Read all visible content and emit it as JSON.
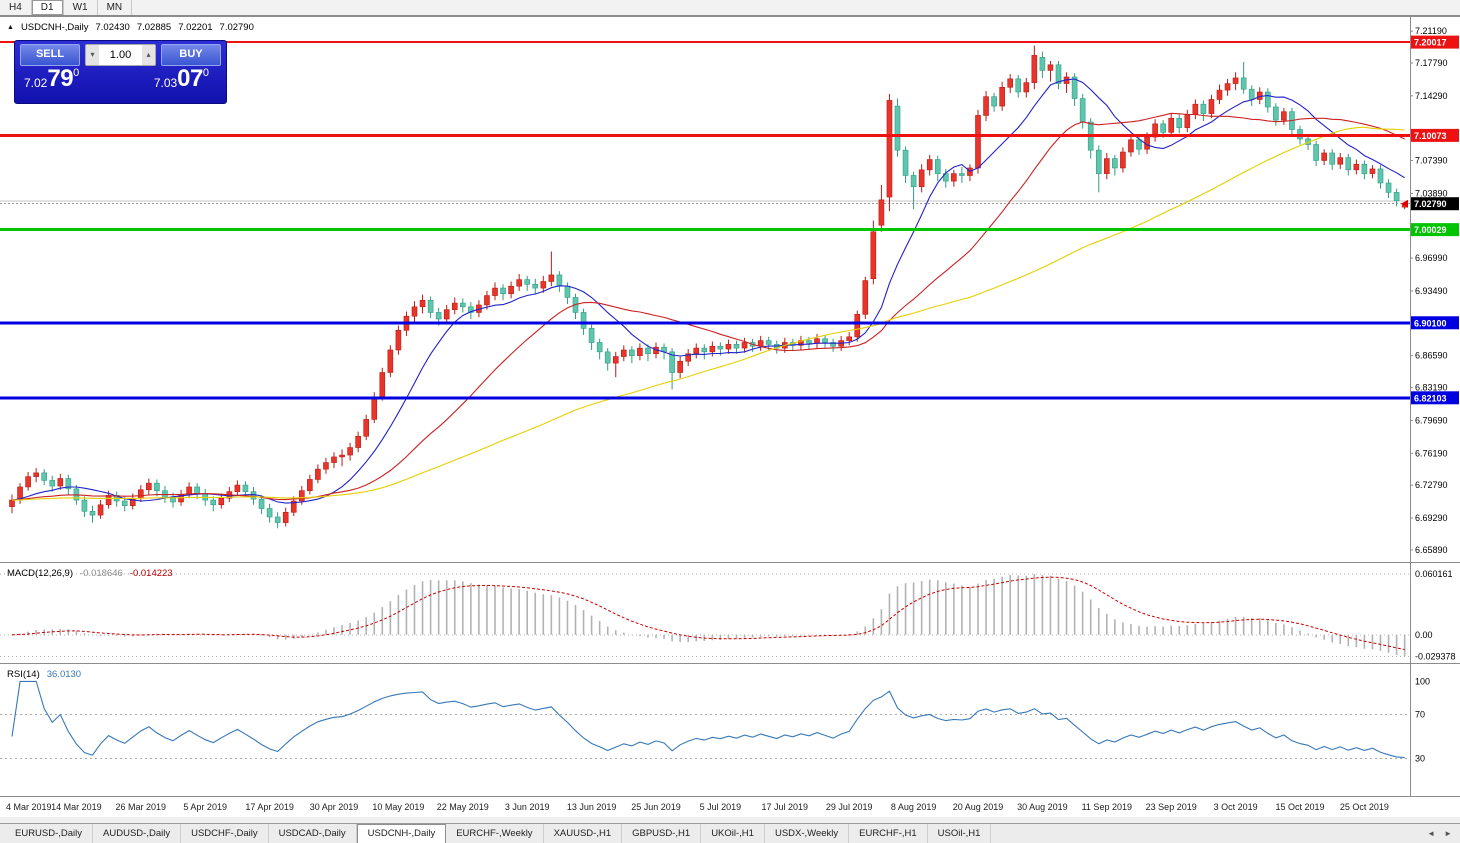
{
  "toolbar": {
    "timeframes": [
      "H4",
      "D1",
      "W1",
      "MN"
    ],
    "active": "D1"
  },
  "chart_header": {
    "collapse_icon": "▲",
    "symbol": "USDCNH-,Daily",
    "open": "7.02430",
    "high": "7.02885",
    "low": "7.02201",
    "close": "7.02790"
  },
  "trade_widget": {
    "sell_label": "SELL",
    "buy_label": "BUY",
    "lot_value": "1.00",
    "spinner_down_icon": "▾",
    "spinner_up_icon": "▴",
    "sell_price_small": "7.02",
    "sell_price_big": "79",
    "sell_price_sup": "0",
    "buy_price_small": "7.03",
    "buy_price_big": "07",
    "buy_price_sup": "0"
  },
  "colors": {
    "up": "#e8342a",
    "up_border": "#b91c14",
    "down": "#5fc6ae",
    "down_border": "#2f9c84",
    "macd_hist": "#b2b2b2",
    "macd_signal": "#cc0000",
    "rsi": "#3878b8"
  },
  "chart_data": {
    "main": {
      "type": "candlestick",
      "symbol": "USDCNH-,Daily",
      "ohlc_display": {
        "open": "7.02430",
        "high": "7.02885",
        "low": "7.02201",
        "close": "7.02790"
      },
      "y_range": [
        6.646,
        7.228
      ],
      "y_axis_ticks": [
        7.2119,
        7.1779,
        7.1429,
        7.0739,
        7.0389,
        6.9699,
        6.9349,
        6.8659,
        6.8319,
        6.7969,
        6.7619,
        6.7279,
        6.6929,
        6.6589
      ],
      "levels": [
        {
          "value": 7.20017,
          "label": "7.20017",
          "color": "#ee1111",
          "width": 2
        },
        {
          "value": 7.10073,
          "label": "7.10073",
          "color": "#ee1111",
          "width": 3
        },
        {
          "value": 7.00029,
          "label": "7.00029",
          "color": "#00c400",
          "width": 3
        },
        {
          "value": 6.901,
          "label": "6.90100",
          "color": "#0000e0",
          "width": 3
        },
        {
          "value": 6.82103,
          "label": "6.82103",
          "color": "#0000e0",
          "width": 3
        }
      ],
      "current_price": {
        "value": 7.0279,
        "label": "7.02790"
      },
      "ask_price": 7.0307,
      "moving_averages": [
        {
          "period": 10,
          "color": "#2222cc"
        },
        {
          "period": 25,
          "color": "#cc2222"
        },
        {
          "period": 60,
          "color": "#e6cf00"
        }
      ],
      "x_label_step": 8,
      "x_labels": [
        "4 Mar 2019",
        "14 Mar 2019",
        "26 Mar 2019",
        "5 Apr 2019",
        "17 Apr 2019",
        "30 Apr 2019",
        "10 May 2019",
        "22 May 2019",
        "3 Jun 2019",
        "13 Jun 2019",
        "25 Jun 2019",
        "5 Jul 2019",
        "17 Jul 2019",
        "29 Jul 2019",
        "8 Aug 2019",
        "20 Aug 2019",
        "30 Aug 2019",
        "11 Sep 2019",
        "23 Sep 2019",
        "3 Oct 2019",
        "15 Oct 2019",
        "25 Oct 2019"
      ],
      "candles": [
        [
          6.705,
          6.718,
          6.698,
          6.712
        ],
        [
          6.712,
          6.73,
          6.708,
          6.726
        ],
        [
          6.726,
          6.742,
          6.722,
          6.737
        ],
        [
          6.737,
          6.746,
          6.731,
          6.741
        ],
        [
          6.741,
          6.745,
          6.728,
          6.733
        ],
        [
          6.733,
          6.738,
          6.721,
          6.727
        ],
        [
          6.727,
          6.74,
          6.723,
          6.735
        ],
        [
          6.735,
          6.739,
          6.718,
          6.724
        ],
        [
          6.724,
          6.728,
          6.707,
          6.712
        ],
        [
          6.712,
          6.716,
          6.694,
          6.7
        ],
        [
          6.7,
          6.706,
          6.688,
          6.696
        ],
        [
          6.696,
          6.712,
          6.692,
          6.707
        ],
        [
          6.707,
          6.722,
          6.703,
          6.717
        ],
        [
          6.717,
          6.721,
          6.705,
          6.711
        ],
        [
          6.711,
          6.716,
          6.7,
          6.706
        ],
        [
          6.706,
          6.719,
          6.702,
          6.714
        ],
        [
          6.714,
          6.728,
          6.71,
          6.723
        ],
        [
          6.723,
          6.735,
          6.718,
          6.73
        ],
        [
          6.73,
          6.734,
          6.716,
          6.722
        ],
        [
          6.722,
          6.727,
          6.709,
          6.715
        ],
        [
          6.715,
          6.72,
          6.704,
          6.71
        ],
        [
          6.71,
          6.723,
          6.706,
          6.718
        ],
        [
          6.718,
          6.731,
          6.714,
          6.726
        ],
        [
          6.726,
          6.73,
          6.713,
          6.719
        ],
        [
          6.719,
          6.724,
          6.706,
          6.712
        ],
        [
          6.712,
          6.716,
          6.7,
          6.707
        ],
        [
          6.707,
          6.719,
          6.703,
          6.714
        ],
        [
          6.714,
          6.726,
          6.71,
          6.721
        ],
        [
          6.721,
          6.733,
          6.717,
          6.728
        ],
        [
          6.728,
          6.732,
          6.715,
          6.721
        ],
        [
          6.721,
          6.726,
          6.707,
          6.713
        ],
        [
          6.713,
          6.717,
          6.697,
          6.703
        ],
        [
          6.703,
          6.708,
          6.688,
          6.694
        ],
        [
          6.694,
          6.699,
          6.682,
          6.688
        ],
        [
          6.688,
          6.704,
          6.684,
          6.699
        ],
        [
          6.699,
          6.716,
          6.695,
          6.711
        ],
        [
          6.711,
          6.727,
          6.707,
          6.722
        ],
        [
          6.722,
          6.739,
          6.718,
          6.734
        ],
        [
          6.734,
          6.75,
          6.73,
          6.745
        ],
        [
          6.745,
          6.757,
          6.74,
          6.752
        ],
        [
          6.752,
          6.763,
          6.746,
          6.758
        ],
        [
          6.758,
          6.766,
          6.748,
          6.76
        ],
        [
          6.76,
          6.773,
          6.754,
          6.768
        ],
        [
          6.768,
          6.785,
          6.763,
          6.78
        ],
        [
          6.78,
          6.803,
          6.776,
          6.798
        ],
        [
          6.798,
          6.827,
          6.794,
          6.822
        ],
        [
          6.822,
          6.853,
          6.818,
          6.848
        ],
        [
          6.848,
          6.877,
          6.843,
          6.872
        ],
        [
          6.872,
          6.898,
          6.867,
          6.893
        ],
        [
          6.893,
          6.913,
          6.887,
          6.908
        ],
        [
          6.908,
          6.924,
          6.902,
          6.918
        ],
        [
          6.918,
          6.931,
          6.911,
          6.925
        ],
        [
          6.925,
          6.929,
          6.906,
          6.912
        ],
        [
          6.912,
          6.917,
          6.898,
          6.905
        ],
        [
          6.905,
          6.92,
          6.9,
          6.915
        ],
        [
          6.915,
          6.928,
          6.91,
          6.922
        ],
        [
          6.922,
          6.927,
          6.912,
          6.918
        ],
        [
          6.918,
          6.923,
          6.905,
          6.912
        ],
        [
          6.912,
          6.925,
          6.907,
          6.92
        ],
        [
          6.92,
          6.935,
          6.915,
          6.93
        ],
        [
          6.93,
          6.944,
          6.925,
          6.938
        ],
        [
          6.938,
          6.942,
          6.925,
          6.932
        ],
        [
          6.932,
          6.945,
          6.927,
          6.94
        ],
        [
          6.94,
          6.953,
          6.935,
          6.947
        ],
        [
          6.947,
          6.951,
          6.935,
          6.942
        ],
        [
          6.942,
          6.948,
          6.931,
          6.938
        ],
        [
          6.938,
          6.951,
          6.933,
          6.945
        ],
        [
          6.945,
          6.977,
          6.94,
          6.952
        ],
        [
          6.952,
          6.956,
          6.934,
          6.94
        ],
        [
          6.94,
          6.944,
          6.921,
          6.928
        ],
        [
          6.928,
          6.932,
          6.905,
          6.912
        ],
        [
          6.912,
          6.916,
          6.888,
          6.895
        ],
        [
          6.895,
          6.899,
          6.872,
          6.88
        ],
        [
          6.88,
          6.884,
          6.862,
          6.87
        ],
        [
          6.87,
          6.874,
          6.85,
          6.858
        ],
        [
          6.858,
          6.87,
          6.843,
          6.865
        ],
        [
          6.865,
          6.877,
          6.86,
          6.872
        ],
        [
          6.872,
          6.876,
          6.858,
          6.866
        ],
        [
          6.866,
          6.879,
          6.861,
          6.874
        ],
        [
          6.874,
          6.878,
          6.86,
          6.868
        ],
        [
          6.868,
          6.88,
          6.863,
          6.875
        ],
        [
          6.875,
          6.879,
          6.862,
          6.87
        ],
        [
          6.87,
          6.874,
          6.83,
          6.848
        ],
        [
          6.848,
          6.865,
          6.842,
          6.86
        ],
        [
          6.86,
          6.873,
          6.855,
          6.868
        ],
        [
          6.868,
          6.879,
          6.863,
          6.874
        ],
        [
          6.874,
          6.878,
          6.862,
          6.87
        ],
        [
          6.87,
          6.881,
          6.865,
          6.876
        ],
        [
          6.876,
          6.88,
          6.866,
          6.873
        ],
        [
          6.873,
          6.883,
          6.868,
          6.878
        ],
        [
          6.878,
          6.882,
          6.868,
          6.874
        ],
        [
          6.874,
          6.885,
          6.869,
          6.88
        ],
        [
          6.88,
          6.884,
          6.87,
          6.876
        ],
        [
          6.876,
          6.887,
          6.871,
          6.882
        ],
        [
          6.882,
          6.886,
          6.872,
          6.878
        ],
        [
          6.878,
          6.882,
          6.868,
          6.874
        ],
        [
          6.874,
          6.885,
          6.869,
          6.88
        ],
        [
          6.88,
          6.884,
          6.871,
          6.877
        ],
        [
          6.877,
          6.887,
          6.872,
          6.882
        ],
        [
          6.882,
          6.886,
          6.873,
          6.879
        ],
        [
          6.879,
          6.889,
          6.874,
          6.884
        ],
        [
          6.884,
          6.888,
          6.874,
          6.88
        ],
        [
          6.88,
          6.884,
          6.87,
          6.876
        ],
        [
          6.876,
          6.887,
          6.871,
          6.882
        ],
        [
          6.882,
          6.891,
          6.877,
          6.886
        ],
        [
          6.886,
          6.914,
          6.881,
          6.91
        ],
        [
          6.91,
          6.95,
          6.905,
          6.946
        ],
        [
          6.948,
          7.01,
          6.942,
          6.998
        ],
        [
          7.005,
          7.048,
          6.998,
          7.032
        ],
        [
          7.035,
          7.145,
          7.02,
          7.138
        ],
        [
          7.132,
          7.14,
          7.078,
          7.085
        ],
        [
          7.085,
          7.089,
          7.05,
          7.058
        ],
        [
          7.058,
          7.062,
          7.022,
          7.046
        ],
        [
          7.046,
          7.07,
          7.04,
          7.064
        ],
        [
          7.064,
          7.08,
          7.058,
          7.075
        ],
        [
          7.075,
          7.079,
          7.052,
          7.06
        ],
        [
          7.06,
          7.065,
          7.045,
          7.052
        ],
        [
          7.052,
          7.064,
          7.046,
          7.06
        ],
        [
          7.06,
          7.067,
          7.05,
          7.058
        ],
        [
          7.058,
          7.07,
          7.052,
          7.066
        ],
        [
          7.066,
          7.128,
          7.06,
          7.122
        ],
        [
          7.122,
          7.148,
          7.116,
          7.142
        ],
        [
          7.142,
          7.146,
          7.126,
          7.132
        ],
        [
          7.132,
          7.158,
          7.127,
          7.152
        ],
        [
          7.152,
          7.166,
          7.146,
          7.161
        ],
        [
          7.161,
          7.165,
          7.141,
          7.147
        ],
        [
          7.147,
          7.162,
          7.141,
          7.157
        ],
        [
          7.157,
          7.1965,
          7.15,
          7.186
        ],
        [
          7.184,
          7.19,
          7.162,
          7.17
        ],
        [
          7.17,
          7.18,
          7.158,
          7.176
        ],
        [
          7.176,
          7.18,
          7.15,
          7.156
        ],
        [
          7.156,
          7.168,
          7.146,
          7.163
        ],
        [
          7.163,
          7.167,
          7.132,
          7.14
        ],
        [
          7.14,
          7.145,
          7.108,
          7.115
        ],
        [
          7.115,
          7.119,
          7.076,
          7.085
        ],
        [
          7.085,
          7.09,
          7.04,
          7.06
        ],
        [
          7.06,
          7.082,
          7.054,
          7.076
        ],
        [
          7.076,
          7.08,
          7.058,
          7.066
        ],
        [
          7.066,
          7.088,
          7.061,
          7.083
        ],
        [
          7.083,
          7.1,
          7.078,
          7.096
        ],
        [
          7.096,
          7.1,
          7.08,
          7.086
        ],
        [
          7.086,
          7.104,
          7.081,
          7.099
        ],
        [
          7.099,
          7.118,
          7.094,
          7.113
        ],
        [
          7.113,
          7.117,
          7.098,
          7.104
        ],
        [
          7.104,
          7.124,
          7.1,
          7.119
        ],
        [
          7.119,
          7.123,
          7.103,
          7.109
        ],
        [
          7.109,
          7.128,
          7.104,
          7.123
        ],
        [
          7.123,
          7.139,
          7.118,
          7.134
        ],
        [
          7.134,
          7.138,
          7.116,
          7.124
        ],
        [
          7.124,
          7.144,
          7.119,
          7.139
        ],
        [
          7.139,
          7.155,
          7.134,
          7.149
        ],
        [
          7.149,
          7.161,
          7.143,
          7.156
        ],
        [
          7.156,
          7.168,
          7.149,
          7.162
        ],
        [
          7.162,
          7.179,
          7.145,
          7.15
        ],
        [
          7.15,
          7.154,
          7.132,
          7.139
        ],
        [
          7.139,
          7.152,
          7.134,
          7.147
        ],
        [
          7.147,
          7.151,
          7.125,
          7.131
        ],
        [
          7.131,
          7.135,
          7.111,
          7.117
        ],
        [
          7.117,
          7.13,
          7.112,
          7.126
        ],
        [
          7.126,
          7.13,
          7.101,
          7.107
        ],
        [
          7.107,
          7.111,
          7.091,
          7.097
        ],
        [
          7.097,
          7.102,
          7.085,
          7.091
        ],
        [
          7.091,
          7.095,
          7.068,
          7.074
        ],
        [
          7.074,
          7.086,
          7.069,
          7.082
        ],
        [
          7.082,
          7.086,
          7.064,
          7.07
        ],
        [
          7.07,
          7.082,
          7.065,
          7.077
        ],
        [
          7.077,
          7.081,
          7.058,
          7.064
        ],
        [
          7.064,
          7.075,
          7.059,
          7.07
        ],
        [
          7.07,
          7.074,
          7.054,
          7.06
        ],
        [
          7.06,
          7.069,
          7.055,
          7.065
        ],
        [
          7.065,
          7.069,
          7.044,
          7.05
        ],
        [
          7.05,
          7.054,
          7.034,
          7.04
        ],
        [
          7.04,
          7.044,
          7.025,
          7.031
        ],
        [
          7.0243,
          7.0289,
          7.022,
          7.0279
        ]
      ]
    },
    "macd": {
      "type": "macd-histogram",
      "label": "MACD(12,26,9)",
      "params": [
        12,
        26,
        9
      ],
      "current_main": "-0.018646",
      "current_signal": "-0.014223",
      "axis_labels": [
        "0.060161",
        "0.00",
        "-0.029378"
      ]
    },
    "rsi": {
      "type": "line",
      "label": "RSI(14)",
      "period": 14,
      "current": "36.0130",
      "axis_labels": [
        "100",
        "70",
        "30"
      ],
      "guide_levels": [
        70,
        30
      ]
    }
  },
  "tabs": {
    "items": [
      "EURUSD-,Daily",
      "AUDUSD-,Daily",
      "USDCHF-,Daily",
      "USDCAD-,Daily",
      "USDCNH-,Daily",
      "EURCHF-,Weekly",
      "XAUUSD-,H1",
      "GBPUSD-,H1",
      "UKOil-,H1",
      "USDX-,Weekly",
      "EURCHF-,H1",
      "USOil-,H1"
    ],
    "active": "USDCNH-,Daily",
    "scroll_left_icon": "◄",
    "scroll_right_icon": "►"
  }
}
